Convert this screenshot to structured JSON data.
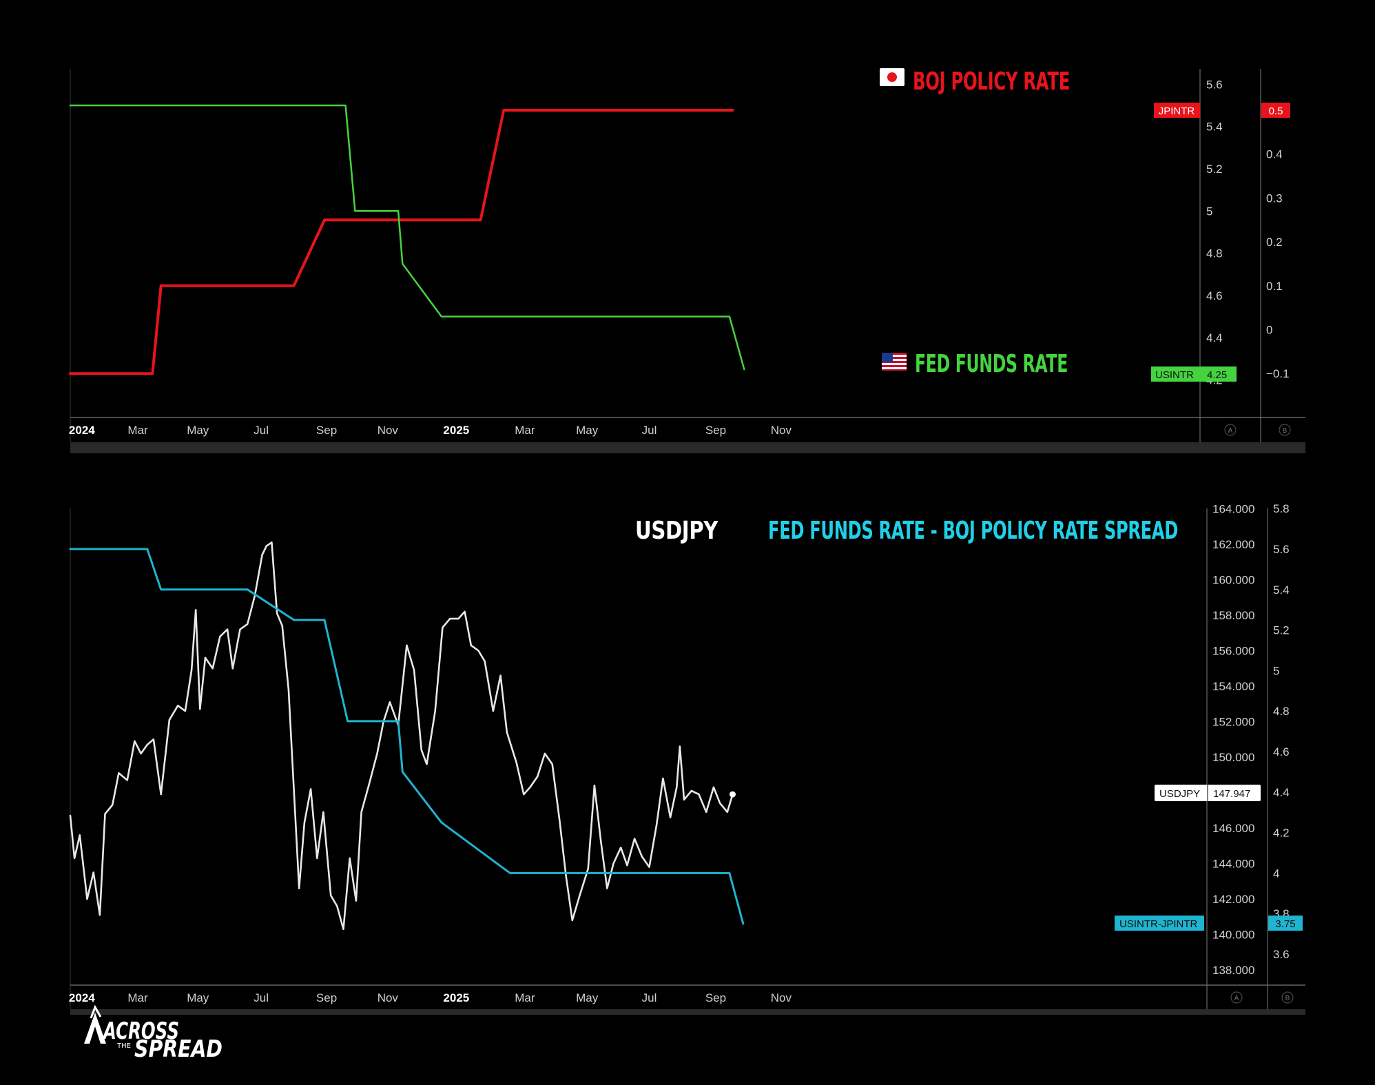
{
  "colors": {
    "background": "#000000",
    "boj": "#e8141b",
    "fed": "#45d43f",
    "usdjpy": "#e8e8e8",
    "spread": "#1fb4cf",
    "scale_bg_active": "#ffffff"
  },
  "panel1": {
    "title_boj": "BOJ POLICY RATE",
    "title_fed": "FED FUNDS RATE",
    "flag_jp_icon": "japan-flag-icon",
    "flag_us_icon": "us-flag-icon",
    "tag_jpintr_label": "JPINTR",
    "tag_jpintr_value": "0.5",
    "tag_usintr_label": "USINTR",
    "tag_usintr_value": "4.25",
    "scale_a_label": "A",
    "scale_b_label": "B",
    "axis_a_ticks": [
      "5.6",
      "5.4",
      "5.2",
      "5",
      "4.8",
      "4.6",
      "4.4",
      "4.2"
    ],
    "axis_b_ticks": [
      "0.5",
      "0.4",
      "0.3",
      "0.2",
      "0.1",
      "0",
      "−0.1"
    ]
  },
  "panel2": {
    "title_usdjpy": "USDJPY",
    "title_spread": "FED FUNDS RATE - BOJ POLICY RATE SPREAD",
    "tag_usdjpy_label": "USDJPY",
    "tag_usdjpy_value": "147.947",
    "tag_spread_label": "USINTR-JPINTR",
    "tag_spread_value": "3.75",
    "scale_a_label": "A",
    "scale_b_label": "B",
    "axis_a_ticks": [
      "164.000",
      "162.000",
      "160.000",
      "158.000",
      "156.000",
      "154.000",
      "152.000",
      "150.000",
      "148.000",
      "146.000",
      "144.000",
      "142.000",
      "140.000",
      "138.000"
    ],
    "axis_b_ticks": [
      "5.8",
      "5.6",
      "5.4",
      "5.2",
      "5",
      "4.8",
      "4.6",
      "4.4",
      "4.2",
      "4",
      "3.8",
      "3.6"
    ]
  },
  "x_axis_labels": [
    {
      "text": "2024",
      "bold": true
    },
    {
      "text": "Mar",
      "bold": false
    },
    {
      "text": "May",
      "bold": false
    },
    {
      "text": "Jul",
      "bold": false
    },
    {
      "text": "Sep",
      "bold": false
    },
    {
      "text": "Nov",
      "bold": false
    },
    {
      "text": "2025",
      "bold": true
    },
    {
      "text": "Mar",
      "bold": false
    },
    {
      "text": "May",
      "bold": false
    },
    {
      "text": "Jul",
      "bold": false
    },
    {
      "text": "Sep",
      "bold": false
    },
    {
      "text": "Nov",
      "bold": false
    }
  ],
  "logo": {
    "line1": "ACROSS",
    "line2": "THE",
    "line3": "SPREAD"
  },
  "chart_data": [
    {
      "type": "line",
      "ylim_a": [
        4.15,
        5.65
      ],
      "ylim_b": [
        -0.1,
        0.5
      ],
      "series": [
        {
          "name": "JPINTR",
          "axis": "b",
          "points": [
            [
              "2024-01-01",
              -0.1
            ],
            [
              "2024-03-19",
              -0.1
            ],
            [
              "2024-03-27",
              0.1
            ],
            [
              "2024-07-31",
              0.1
            ],
            [
              "2024-08-29",
              0.25
            ],
            [
              "2024-12-31",
              0.25
            ],
            [
              "2025-01-24",
              0.25
            ],
            [
              "2025-02-15",
              0.5
            ],
            [
              "2025-09-20",
              0.5
            ]
          ]
        },
        {
          "name": "USINTR",
          "axis": "a",
          "points": [
            [
              "2024-01-01",
              5.5
            ],
            [
              "2024-09-18",
              5.5
            ],
            [
              "2024-09-27",
              5.0
            ],
            [
              "2024-11-07",
              5.0
            ],
            [
              "2024-11-11",
              4.75
            ],
            [
              "2024-12-18",
              4.5
            ],
            [
              "2025-09-17",
              4.5
            ],
            [
              "2025-10-01",
              4.25
            ]
          ]
        }
      ]
    },
    {
      "type": "line",
      "ylim_a": [
        137,
        164
      ],
      "ylim_b": [
        3.55,
        5.85
      ],
      "series": [
        {
          "name": "USDJPY",
          "axis": "a",
          "points": [
            [
              "2024-01-01",
              146.7
            ],
            [
              "2024-01-05",
              144.3
            ],
            [
              "2024-01-10",
              145.6
            ],
            [
              "2024-01-17",
              142.0
            ],
            [
              "2024-01-23",
              143.5
            ],
            [
              "2024-01-29",
              141.1
            ],
            [
              "2024-02-03",
              146.8
            ],
            [
              "2024-02-10",
              147.3
            ],
            [
              "2024-02-16",
              149.1
            ],
            [
              "2024-02-24",
              148.7
            ],
            [
              "2024-03-02",
              150.9
            ],
            [
              "2024-03-08",
              150.2
            ],
            [
              "2024-03-14",
              150.7
            ],
            [
              "2024-03-20",
              151.0
            ],
            [
              "2024-03-27",
              147.9
            ],
            [
              "2024-04-04",
              152.1
            ],
            [
              "2024-04-12",
              152.9
            ],
            [
              "2024-04-19",
              152.6
            ],
            [
              "2024-04-25",
              154.9
            ],
            [
              "2024-04-29",
              158.3
            ],
            [
              "2024-05-03",
              152.7
            ],
            [
              "2024-05-08",
              155.6
            ],
            [
              "2024-05-15",
              155.0
            ],
            [
              "2024-05-22",
              156.8
            ],
            [
              "2024-05-29",
              157.2
            ],
            [
              "2024-06-03",
              155.0
            ],
            [
              "2024-06-10",
              157.2
            ],
            [
              "2024-06-17",
              157.5
            ],
            [
              "2024-06-24",
              159.1
            ],
            [
              "2024-07-01",
              161.4
            ],
            [
              "2024-07-05",
              161.9
            ],
            [
              "2024-07-10",
              162.1
            ],
            [
              "2024-07-15",
              158.1
            ],
            [
              "2024-07-20",
              157.4
            ],
            [
              "2024-07-26",
              153.8
            ],
            [
              "2024-08-05",
              142.6
            ],
            [
              "2024-08-10",
              146.3
            ],
            [
              "2024-08-16",
              148.2
            ],
            [
              "2024-08-22",
              144.3
            ],
            [
              "2024-08-28",
              146.9
            ],
            [
              "2024-09-04",
              142.2
            ],
            [
              "2024-09-10",
              141.6
            ],
            [
              "2024-09-16",
              140.3
            ],
            [
              "2024-09-22",
              144.3
            ],
            [
              "2024-09-28",
              141.9
            ],
            [
              "2024-10-03",
              146.9
            ],
            [
              "2024-10-10",
              148.4
            ],
            [
              "2024-10-18",
              150.2
            ],
            [
              "2024-10-24",
              152.0
            ],
            [
              "2024-10-30",
              153.1
            ],
            [
              "2024-11-07",
              151.8
            ],
            [
              "2024-11-15",
              156.3
            ],
            [
              "2024-11-22",
              154.9
            ],
            [
              "2024-11-29",
              150.4
            ],
            [
              "2024-12-04",
              149.6
            ],
            [
              "2024-12-12",
              152.6
            ],
            [
              "2024-12-19",
              157.3
            ],
            [
              "2024-12-26",
              157.8
            ],
            [
              "2025-01-03",
              157.8
            ],
            [
              "2025-01-09",
              158.2
            ],
            [
              "2025-01-15",
              156.3
            ],
            [
              "2025-01-22",
              156.0
            ],
            [
              "2025-01-28",
              155.4
            ],
            [
              "2025-02-05",
              152.6
            ],
            [
              "2025-02-12",
              154.6
            ],
            [
              "2025-02-18",
              151.4
            ],
            [
              "2025-02-27",
              149.7
            ],
            [
              "2025-03-06",
              147.9
            ],
            [
              "2025-03-12",
              148.3
            ],
            [
              "2025-03-19",
              148.9
            ],
            [
              "2025-03-26",
              150.2
            ],
            [
              "2025-04-02",
              149.6
            ],
            [
              "2025-04-09",
              146.4
            ],
            [
              "2025-04-15",
              143.3
            ],
            [
              "2025-04-21",
              140.8
            ],
            [
              "2025-04-28",
              142.2
            ],
            [
              "2025-05-06",
              143.7
            ],
            [
              "2025-05-12",
              148.4
            ],
            [
              "2025-05-18",
              145.3
            ],
            [
              "2025-05-24",
              142.6
            ],
            [
              "2025-05-30",
              144.0
            ],
            [
              "2025-06-06",
              144.9
            ],
            [
              "2025-06-12",
              143.9
            ],
            [
              "2025-06-19",
              145.4
            ],
            [
              "2025-06-26",
              144.4
            ],
            [
              "2025-07-03",
              143.8
            ],
            [
              "2025-07-10",
              146.2
            ],
            [
              "2025-07-16",
              148.8
            ],
            [
              "2025-07-23",
              146.6
            ],
            [
              "2025-07-29",
              148.3
            ],
            [
              "2025-08-01",
              150.6
            ],
            [
              "2025-08-05",
              147.6
            ],
            [
              "2025-08-12",
              148.1
            ],
            [
              "2025-08-19",
              147.9
            ],
            [
              "2025-08-26",
              146.9
            ],
            [
              "2025-09-02",
              148.3
            ],
            [
              "2025-09-08",
              147.4
            ],
            [
              "2025-09-15",
              146.9
            ],
            [
              "2025-09-20",
              147.9
            ]
          ]
        },
        {
          "name": "USINTR-JPINTR",
          "axis": "b",
          "points": [
            [
              "2024-01-01",
              5.6
            ],
            [
              "2024-03-14",
              5.6
            ],
            [
              "2024-03-27",
              5.4
            ],
            [
              "2024-06-17",
              5.4
            ],
            [
              "2024-07-31",
              5.25
            ],
            [
              "2024-08-29",
              5.25
            ],
            [
              "2024-09-20",
              4.75
            ],
            [
              "2024-11-07",
              4.75
            ],
            [
              "2024-11-11",
              4.5
            ],
            [
              "2024-12-18",
              4.25
            ],
            [
              "2025-02-21",
              4.0
            ],
            [
              "2025-09-17",
              4.0
            ],
            [
              "2025-09-30",
              3.75
            ]
          ]
        }
      ]
    }
  ]
}
